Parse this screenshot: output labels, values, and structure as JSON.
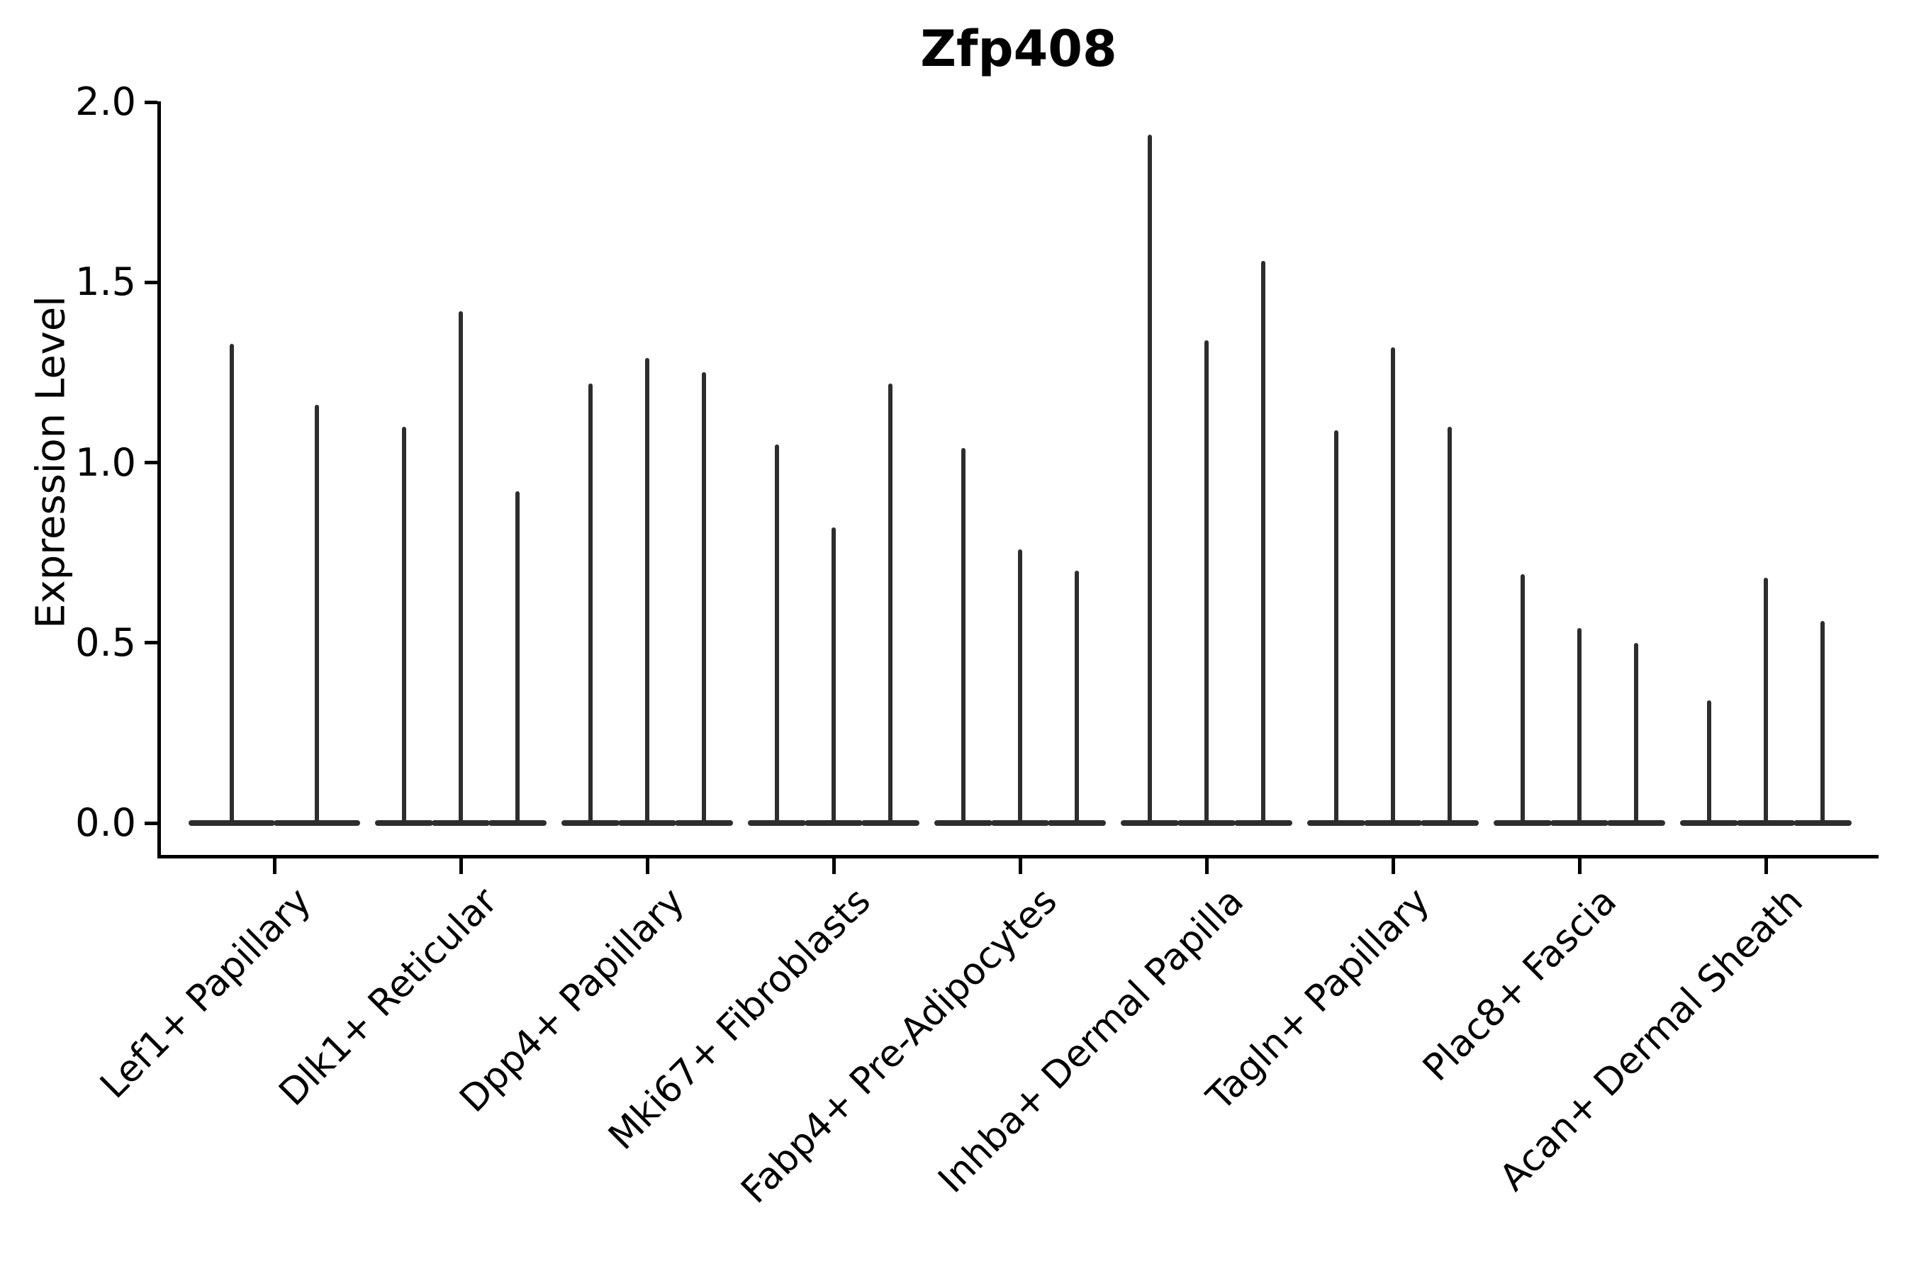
{
  "title": "Zfp408",
  "y_axis": {
    "label": "Expression Level",
    "tick_labels": [
      "0.0",
      "0.5",
      "1.0",
      "1.5",
      "2.0"
    ],
    "tick_values": [
      0.0,
      0.5,
      1.0,
      1.5,
      2.0
    ]
  },
  "colors": {
    "violin": "#2d2d2d",
    "axis": "#000000",
    "text": "#000000",
    "background": "#ffffff"
  },
  "chart_data": {
    "type": "violin",
    "title": "Zfp408",
    "xlabel": "",
    "ylabel": "Expression Level",
    "ylim": [
      0,
      2.0
    ],
    "yticks": [
      0.0,
      0.5,
      1.0,
      1.5,
      2.0
    ],
    "grid": false,
    "legend": "none",
    "categories": [
      "Lef1+ Papillary",
      "Dlk1+ Reticular",
      "Dpp4+ Papillary",
      "Mki67+ Fibroblasts",
      "Fabp4+ Pre-Adipocytes",
      "Inhba+ Dermal Papilla",
      "Tagln+ Papillary",
      "Plac8+ Fascia",
      "Acan+ Dermal Sheath"
    ],
    "groups": [
      {
        "category": "Lef1+ Papillary",
        "violin_peaks": [
          1.33,
          1.16
        ]
      },
      {
        "category": "Dlk1+ Reticular",
        "violin_peaks": [
          1.1,
          1.42,
          0.92
        ]
      },
      {
        "category": "Dpp4+ Papillary",
        "violin_peaks": [
          1.22,
          1.29,
          1.25
        ]
      },
      {
        "category": "Mki67+ Fibroblasts",
        "violin_peaks": [
          1.05,
          0.82,
          1.22
        ]
      },
      {
        "category": "Fabp4+ Pre-Adipocytes",
        "violin_peaks": [
          1.04,
          0.76,
          0.7
        ]
      },
      {
        "category": "Inhba+ Dermal Papilla",
        "violin_peaks": [
          1.91,
          1.34,
          1.56
        ]
      },
      {
        "category": "Tagln+ Papillary",
        "violin_peaks": [
          1.09,
          1.32,
          1.1
        ]
      },
      {
        "category": "Plac8+ Fascia",
        "violin_peaks": [
          0.69,
          0.54,
          0.5
        ]
      },
      {
        "category": "Acan+ Dermal Sheath",
        "violin_peaks": [
          0.34,
          0.68,
          0.56
        ]
      }
    ],
    "note": "Each violin is collapsed at 0 (flat bar) with a thin spike rising to its maximum expression value."
  }
}
